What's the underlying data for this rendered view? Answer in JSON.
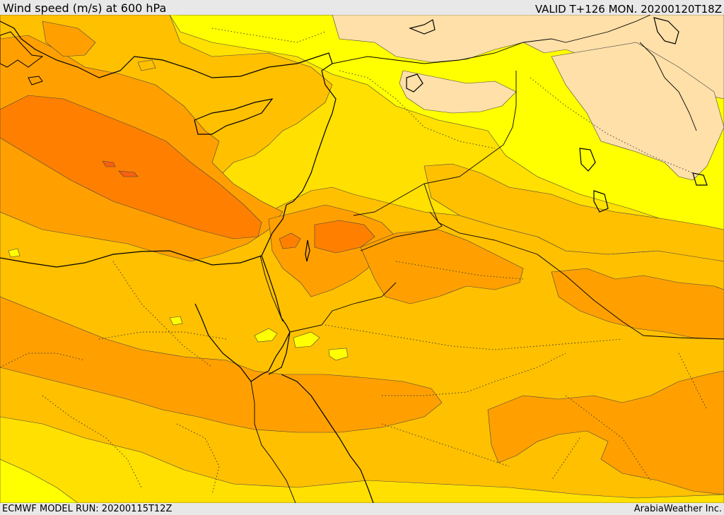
{
  "header": {
    "title": "Wind speed (m/s) at 600 hPa",
    "valid": "VALID T+126 MON. 20200120T18Z"
  },
  "footer": {
    "model_run": "ECMWF MODEL RUN: 20200115T12Z",
    "credit": "ArabiaWeather Inc."
  },
  "map": {
    "field": "wind speed",
    "level": "600 hPa",
    "units": "m/s",
    "color_scale": [
      "#ffe0a8",
      "#ffff00",
      "#ffe000",
      "#ffc000",
      "#ffa000",
      "#ff8000",
      "#f86010"
    ],
    "shaded_regions": [
      "north-plateau-low",
      "north-yellow-band",
      "gold-band",
      "amber-band",
      "orange-jet-east-mediterranean",
      "orange-arabia",
      "orange-egypt",
      "orange-red-core"
    ]
  }
}
